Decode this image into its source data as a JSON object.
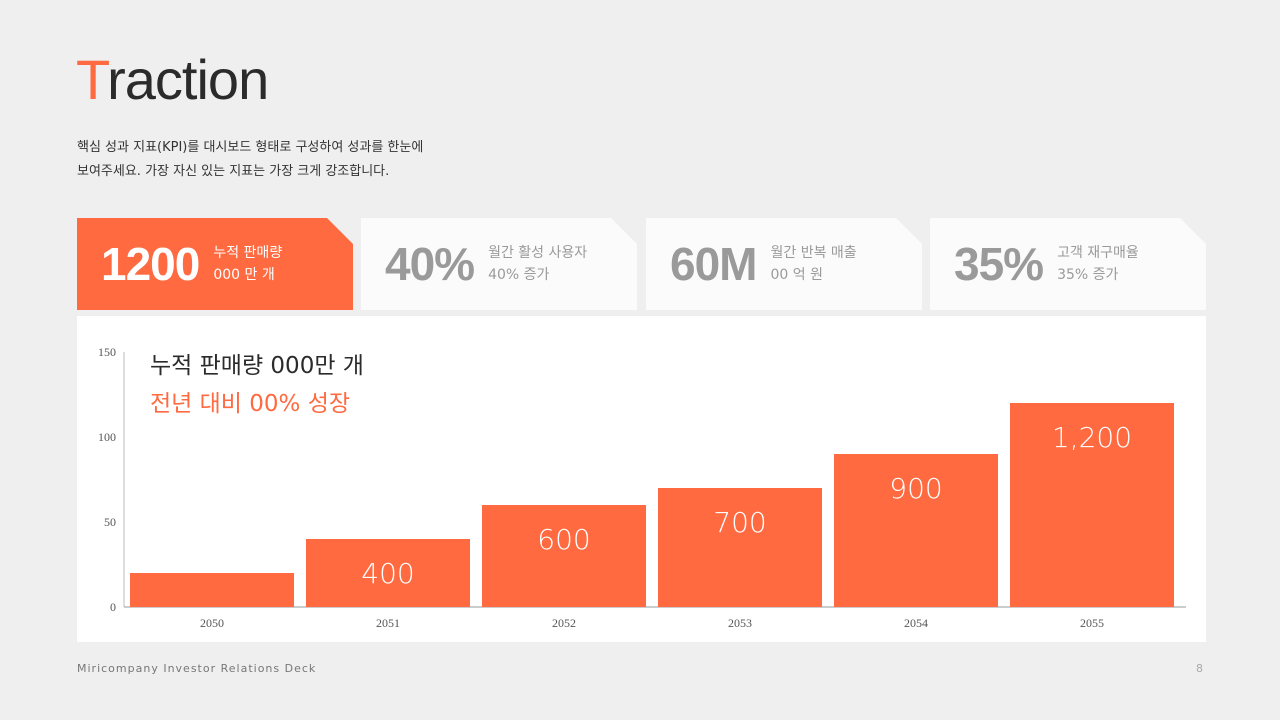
{
  "title": {
    "first_letter": "T",
    "rest": "raction"
  },
  "description": {
    "line1": "핵심 성과 지표(KPI)를 대시보드 형태로 구성하여 성과를 한눈에",
    "line2": "보여주세요. 가장 자신 있는 지표는 가장 크게 강조합니다."
  },
  "kpis": [
    {
      "value": "1200",
      "line1": "누적 판매량",
      "line2": "000 만 개",
      "active": true
    },
    {
      "value": "40%",
      "line1": "월간 활성 사용자",
      "line2": "40% 증가",
      "active": false
    },
    {
      "value": "60M",
      "line1": "월간 반복 매출",
      "line2": "00 억 원",
      "active": false
    },
    {
      "value": "35%",
      "line1": "고객 재구매율",
      "line2": "35% 증가",
      "active": false
    }
  ],
  "chart_header": {
    "line1": "누적 판매량 000만 개",
    "line2": "전년 대비 00% 성장"
  },
  "colors": {
    "accent": "#ff6a40",
    "muted": "#9a9a9a",
    "background": "#efefef"
  },
  "chart_data": {
    "type": "bar",
    "categories": [
      "2050",
      "2051",
      "2052",
      "2053",
      "2054",
      "2055"
    ],
    "values": [
      20,
      40,
      60,
      70,
      90,
      120
    ],
    "data_labels": [
      "",
      "400",
      "600",
      "700",
      "900",
      "1,200"
    ],
    "yticks": [
      "0",
      "50",
      "100",
      "150"
    ],
    "ylim": [
      0,
      150
    ],
    "grid": false,
    "bar_color": "#ff6a40"
  },
  "footer": {
    "left": "Miricompany Investor Relations Deck",
    "page": "8"
  }
}
